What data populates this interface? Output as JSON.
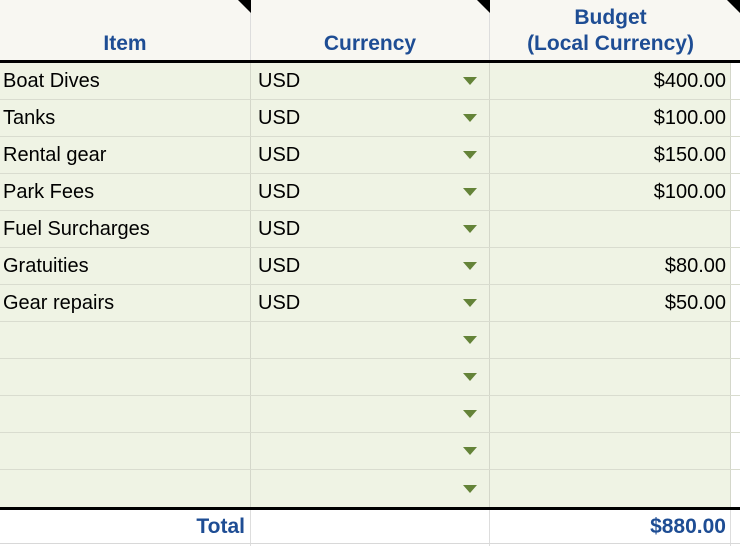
{
  "table": {
    "columns": [
      {
        "label": "Item"
      },
      {
        "label": "Currency"
      },
      {
        "label": "Budget\n(Local Currency)"
      }
    ],
    "rows": [
      {
        "item": "Boat Dives",
        "currency": "USD",
        "budget": "$400.00"
      },
      {
        "item": "Tanks",
        "currency": "USD",
        "budget": "$100.00"
      },
      {
        "item": "Rental gear",
        "currency": "USD",
        "budget": "$150.00"
      },
      {
        "item": "Park Fees",
        "currency": "USD",
        "budget": "$100.00"
      },
      {
        "item": "Fuel Surcharges",
        "currency": "USD",
        "budget": ""
      },
      {
        "item": "Gratuities",
        "currency": "USD",
        "budget": "$80.00"
      },
      {
        "item": "Gear repairs",
        "currency": "USD",
        "budget": "$50.00"
      },
      {
        "item": "",
        "currency": "",
        "budget": ""
      },
      {
        "item": "",
        "currency": "",
        "budget": ""
      },
      {
        "item": "",
        "currency": "",
        "budget": ""
      },
      {
        "item": "",
        "currency": "",
        "budget": ""
      },
      {
        "item": "",
        "currency": "",
        "budget": ""
      }
    ],
    "total": {
      "label": "Total",
      "value": "$880.00"
    }
  },
  "icons": {
    "currency_dropdown": "triangle-down",
    "column_corner_marker": "black-corner-triangle"
  },
  "colors": {
    "header_text": "#1e4d94",
    "total_text": "#1e4d94",
    "header_bg": "#f8f7f2",
    "row_bg": "#eff3e4",
    "dropdown_arrow_green": "#648338",
    "grid_line": "#d4d7ca",
    "rule_black": "#000000"
  }
}
